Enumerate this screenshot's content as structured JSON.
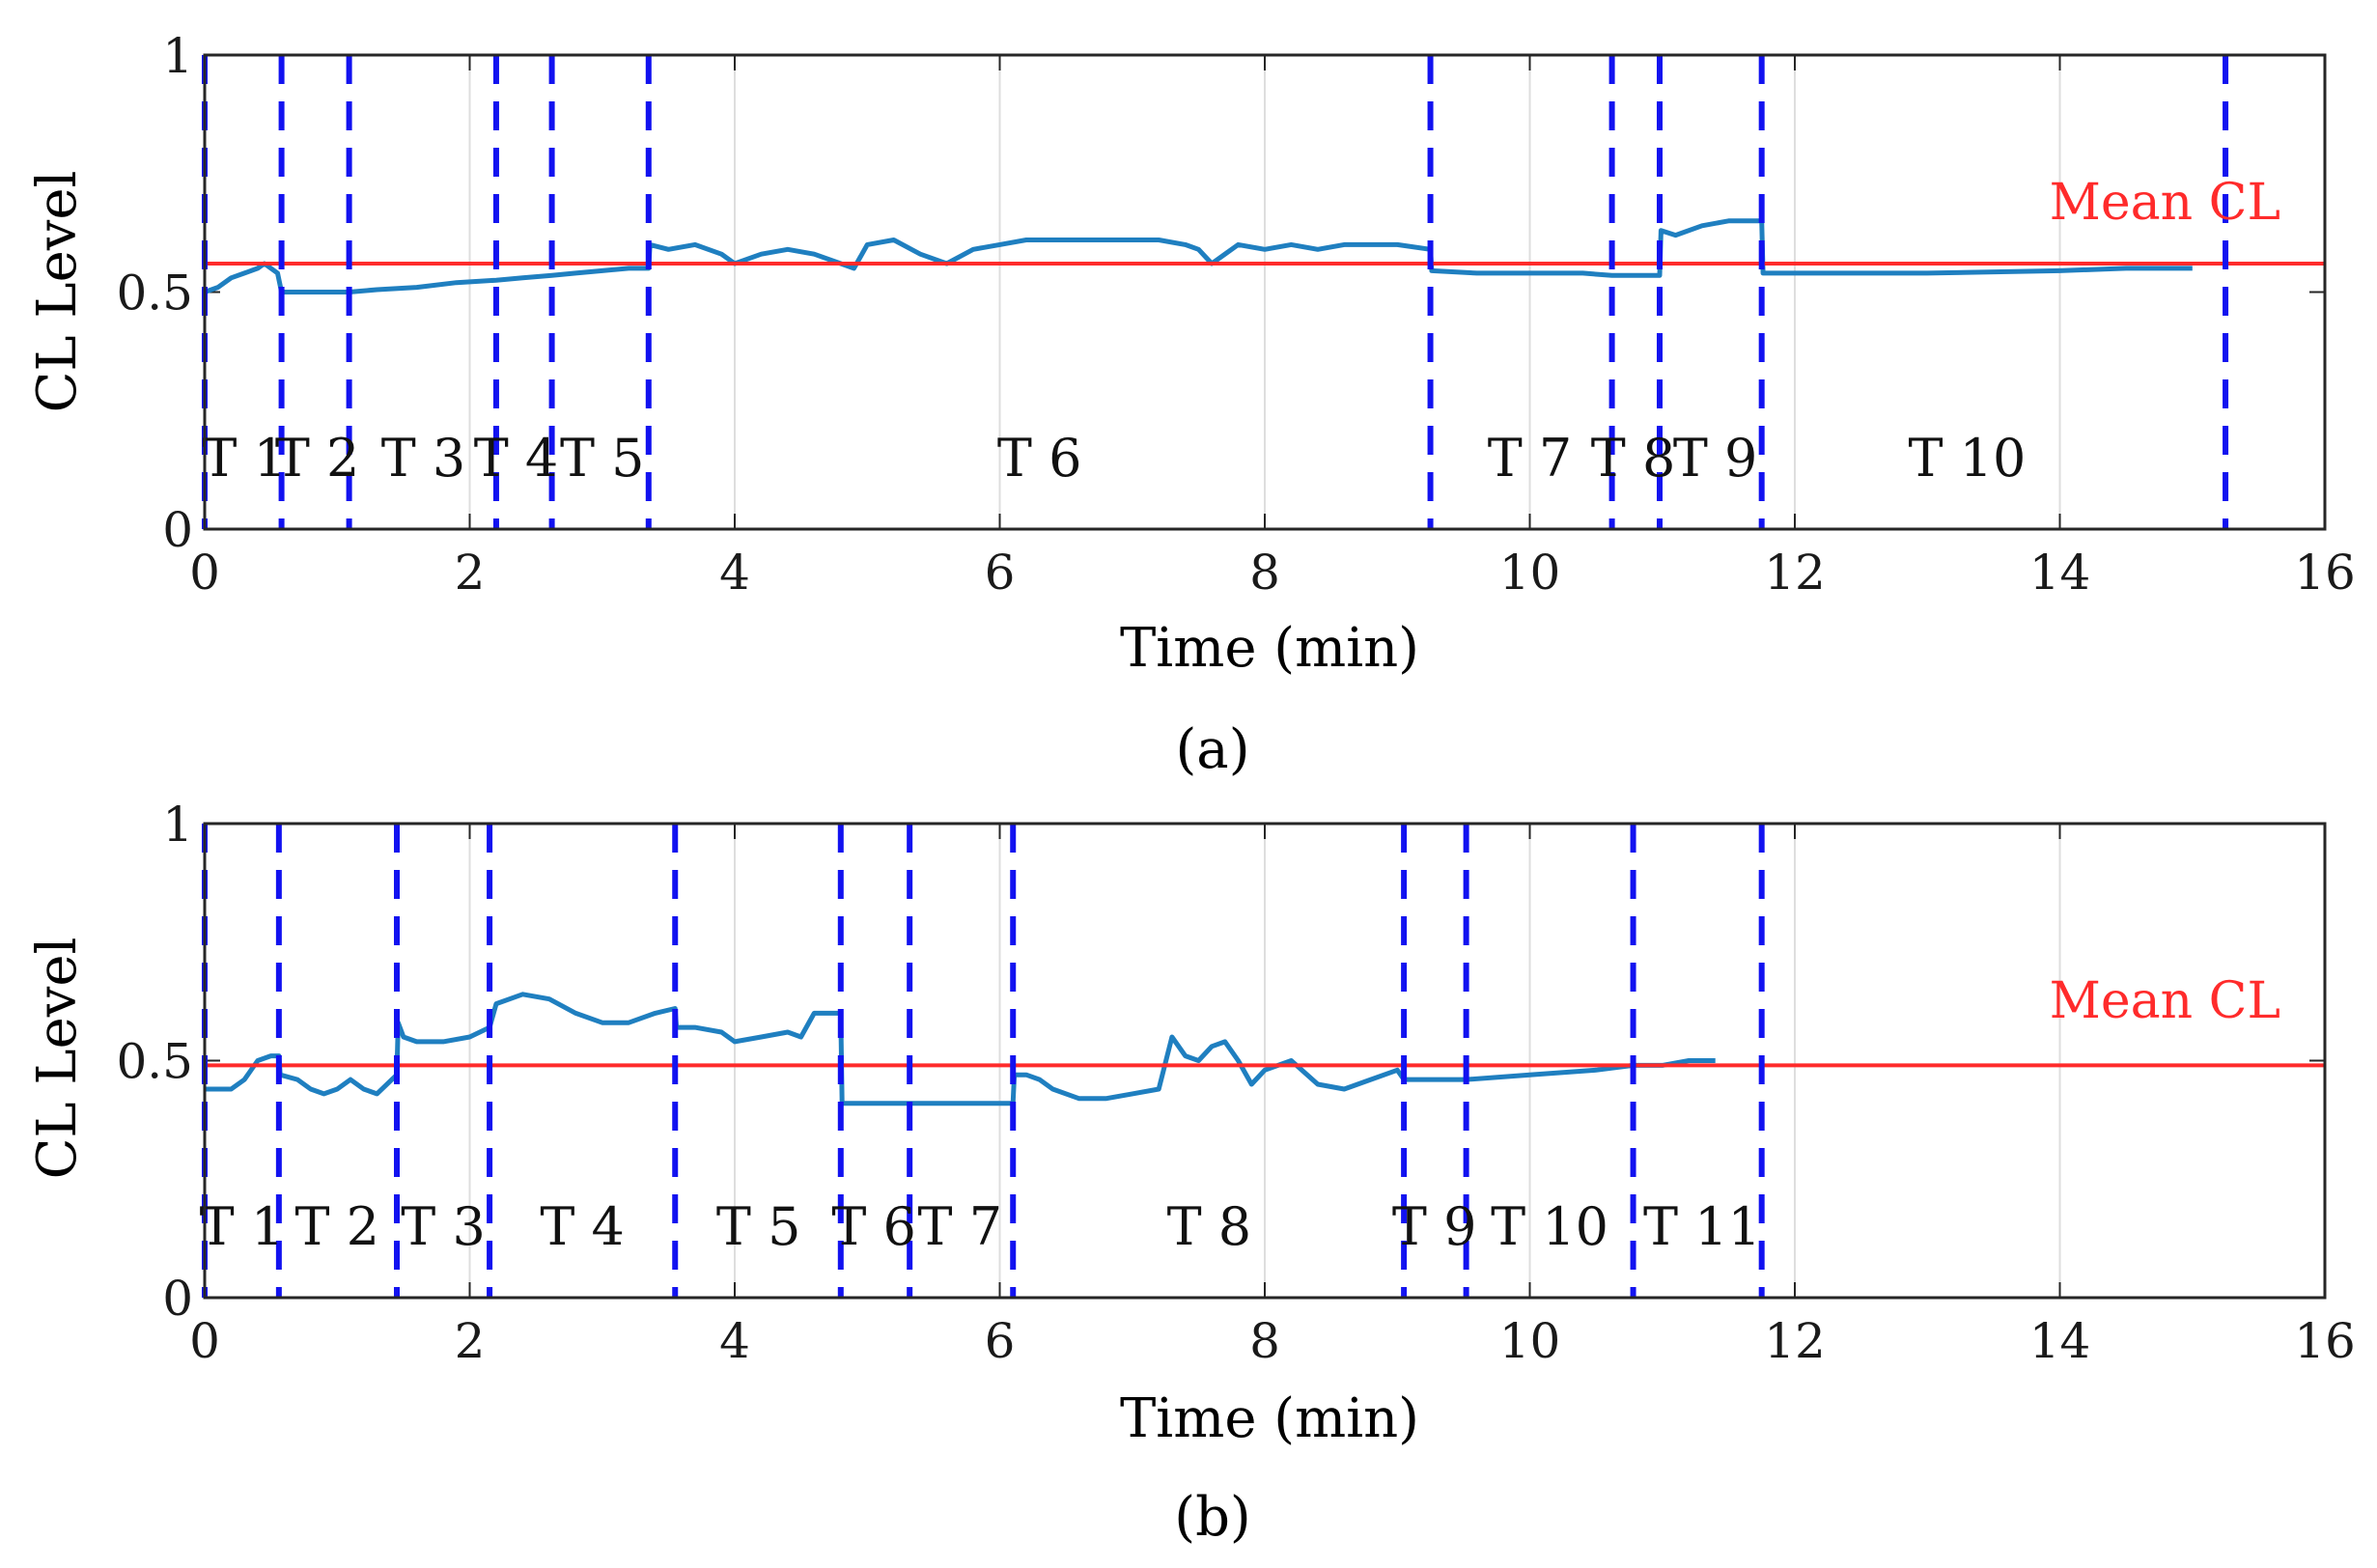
{
  "chart_data": [
    {
      "panel": "(a)",
      "type": "line",
      "xlabel": "Time (min)",
      "ylabel": "CL Level",
      "xlim": [
        0,
        16
      ],
      "ylim": [
        0,
        1
      ],
      "xticks": [
        0,
        2,
        4,
        6,
        8,
        10,
        12,
        14,
        16
      ],
      "yticks": [
        0,
        0.5,
        1
      ],
      "xtick_labels": [
        "0",
        "2",
        "4",
        "6",
        "8",
        "10",
        "12",
        "14",
        "16"
      ],
      "ytick_labels": [
        "0",
        "0.5",
        "1"
      ],
      "grid": "vertical",
      "mean_cl": {
        "label": "Mean CL",
        "value": 0.56,
        "color": "#ff2b2b"
      },
      "boundaries": [
        0,
        0.58,
        1.09,
        2.2,
        2.62,
        3.35,
        9.25,
        10.62,
        10.98,
        11.75,
        15.25
      ],
      "task_labels": [
        {
          "label": "T 1",
          "x": 0.3
        },
        {
          "label": "T 2",
          "x": 0.85
        },
        {
          "label": "T 3",
          "x": 1.65
        },
        {
          "label": "T 4",
          "x": 2.35
        },
        {
          "label": "T 5",
          "x": 3.0
        },
        {
          "label": "T 6",
          "x": 6.3
        },
        {
          "label": "T 7",
          "x": 10.0
        },
        {
          "label": "T 8",
          "x": 10.78
        },
        {
          "label": "T 9",
          "x": 11.4
        },
        {
          "label": "T 10",
          "x": 13.3
        }
      ],
      "series": [
        {
          "name": "CL",
          "color": "#1f7fc0",
          "x": [
            0,
            0.1,
            0.2,
            0.3,
            0.4,
            0.45,
            0.5,
            0.55,
            0.58,
            0.6,
            0.7,
            0.8,
            0.9,
            1.0,
            1.09,
            1.3,
            1.6,
            1.9,
            2.2,
            2.4,
            2.62,
            2.8,
            3.0,
            3.2,
            3.35,
            3.36,
            3.5,
            3.7,
            3.9,
            4.0,
            4.2,
            4.4,
            4.6,
            4.8,
            4.9,
            5.0,
            5.2,
            5.4,
            5.6,
            5.8,
            6.0,
            6.2,
            6.4,
            6.6,
            6.8,
            7.0,
            7.2,
            7.4,
            7.5,
            7.6,
            7.7,
            7.8,
            8.0,
            8.2,
            8.4,
            8.6,
            8.8,
            9.0,
            9.25,
            9.26,
            9.6,
            10.0,
            10.4,
            10.62,
            10.98,
            10.99,
            11.1,
            11.3,
            11.5,
            11.75,
            11.76,
            12.2,
            13.0,
            14.0,
            14.5,
            15.0
          ],
          "y": [
            0.5,
            0.51,
            0.53,
            0.54,
            0.55,
            0.56,
            0.55,
            0.54,
            0.5,
            0.5,
            0.5,
            0.5,
            0.5,
            0.5,
            0.5,
            0.505,
            0.51,
            0.52,
            0.525,
            0.53,
            0.535,
            0.54,
            0.545,
            0.55,
            0.55,
            0.6,
            0.59,
            0.6,
            0.58,
            0.56,
            0.58,
            0.59,
            0.58,
            0.56,
            0.55,
            0.6,
            0.61,
            0.58,
            0.56,
            0.59,
            0.6,
            0.61,
            0.61,
            0.61,
            0.61,
            0.61,
            0.61,
            0.6,
            0.59,
            0.56,
            0.58,
            0.6,
            0.59,
            0.6,
            0.59,
            0.6,
            0.6,
            0.6,
            0.59,
            0.545,
            0.54,
            0.54,
            0.54,
            0.535,
            0.535,
            0.63,
            0.62,
            0.64,
            0.65,
            0.65,
            0.54,
            0.54,
            0.54,
            0.545,
            0.55,
            0.55
          ]
        }
      ]
    },
    {
      "panel": "(b)",
      "type": "line",
      "xlabel": "Time (min)",
      "ylabel": "CL Level",
      "xlim": [
        0,
        16
      ],
      "ylim": [
        0,
        1
      ],
      "xticks": [
        0,
        2,
        4,
        6,
        8,
        10,
        12,
        14,
        16
      ],
      "yticks": [
        0,
        0.5,
        1
      ],
      "xtick_labels": [
        "0",
        "2",
        "4",
        "6",
        "8",
        "10",
        "12",
        "14",
        "16"
      ],
      "ytick_labels": [
        "0",
        "0.5",
        "1"
      ],
      "grid": "vertical",
      "mean_cl": {
        "label": "Mean CL",
        "value": 0.49,
        "color": "#ff2b2b"
      },
      "boundaries": [
        0,
        0.56,
        1.45,
        2.15,
        3.55,
        4.8,
        5.32,
        6.1,
        9.05,
        9.52,
        10.78,
        11.75
      ],
      "task_labels": [
        {
          "label": "T 1",
          "x": 0.28
        },
        {
          "label": "T 2",
          "x": 1.0
        },
        {
          "label": "T 3",
          "x": 1.8
        },
        {
          "label": "T 4",
          "x": 2.85
        },
        {
          "label": "T 5",
          "x": 4.18
        },
        {
          "label": "T 6",
          "x": 5.05
        },
        {
          "label": "T 7",
          "x": 5.7
        },
        {
          "label": "T 8",
          "x": 7.58
        },
        {
          "label": "T 9",
          "x": 9.28
        },
        {
          "label": "T 10",
          "x": 10.15
        },
        {
          "label": "T 11",
          "x": 11.3
        }
      ],
      "series": [
        {
          "name": "CL",
          "color": "#1f7fc0",
          "x": [
            0,
            0.2,
            0.3,
            0.4,
            0.5,
            0.56,
            0.57,
            0.7,
            0.8,
            0.9,
            1.0,
            1.1,
            1.2,
            1.3,
            1.45,
            1.46,
            1.5,
            1.6,
            1.8,
            2.0,
            2.15,
            2.2,
            2.4,
            2.6,
            2.8,
            3.0,
            3.2,
            3.4,
            3.55,
            3.56,
            3.7,
            3.9,
            4.0,
            4.2,
            4.4,
            4.5,
            4.6,
            4.7,
            4.8,
            4.81,
            5.0,
            5.3,
            5.6,
            5.9,
            6.1,
            6.11,
            6.2,
            6.3,
            6.4,
            6.6,
            6.8,
            7.0,
            7.2,
            7.3,
            7.4,
            7.5,
            7.6,
            7.7,
            7.8,
            7.9,
            8.0,
            8.2,
            8.4,
            8.6,
            8.8,
            9.0,
            9.05,
            9.52,
            10.0,
            10.5,
            10.78,
            11.0,
            11.2,
            11.3,
            11.4
          ],
          "y": [
            0.44,
            0.44,
            0.46,
            0.5,
            0.51,
            0.51,
            0.47,
            0.46,
            0.44,
            0.43,
            0.44,
            0.46,
            0.44,
            0.43,
            0.47,
            0.58,
            0.55,
            0.54,
            0.54,
            0.55,
            0.57,
            0.62,
            0.64,
            0.63,
            0.6,
            0.58,
            0.58,
            0.6,
            0.61,
            0.57,
            0.57,
            0.56,
            0.54,
            0.55,
            0.56,
            0.55,
            0.6,
            0.6,
            0.6,
            0.41,
            0.41,
            0.41,
            0.41,
            0.41,
            0.41,
            0.47,
            0.47,
            0.46,
            0.44,
            0.42,
            0.42,
            0.43,
            0.44,
            0.55,
            0.51,
            0.5,
            0.53,
            0.54,
            0.5,
            0.45,
            0.48,
            0.5,
            0.45,
            0.44,
            0.46,
            0.48,
            0.46,
            0.46,
            0.47,
            0.48,
            0.49,
            0.49,
            0.5,
            0.5,
            0.5
          ]
        }
      ]
    }
  ]
}
